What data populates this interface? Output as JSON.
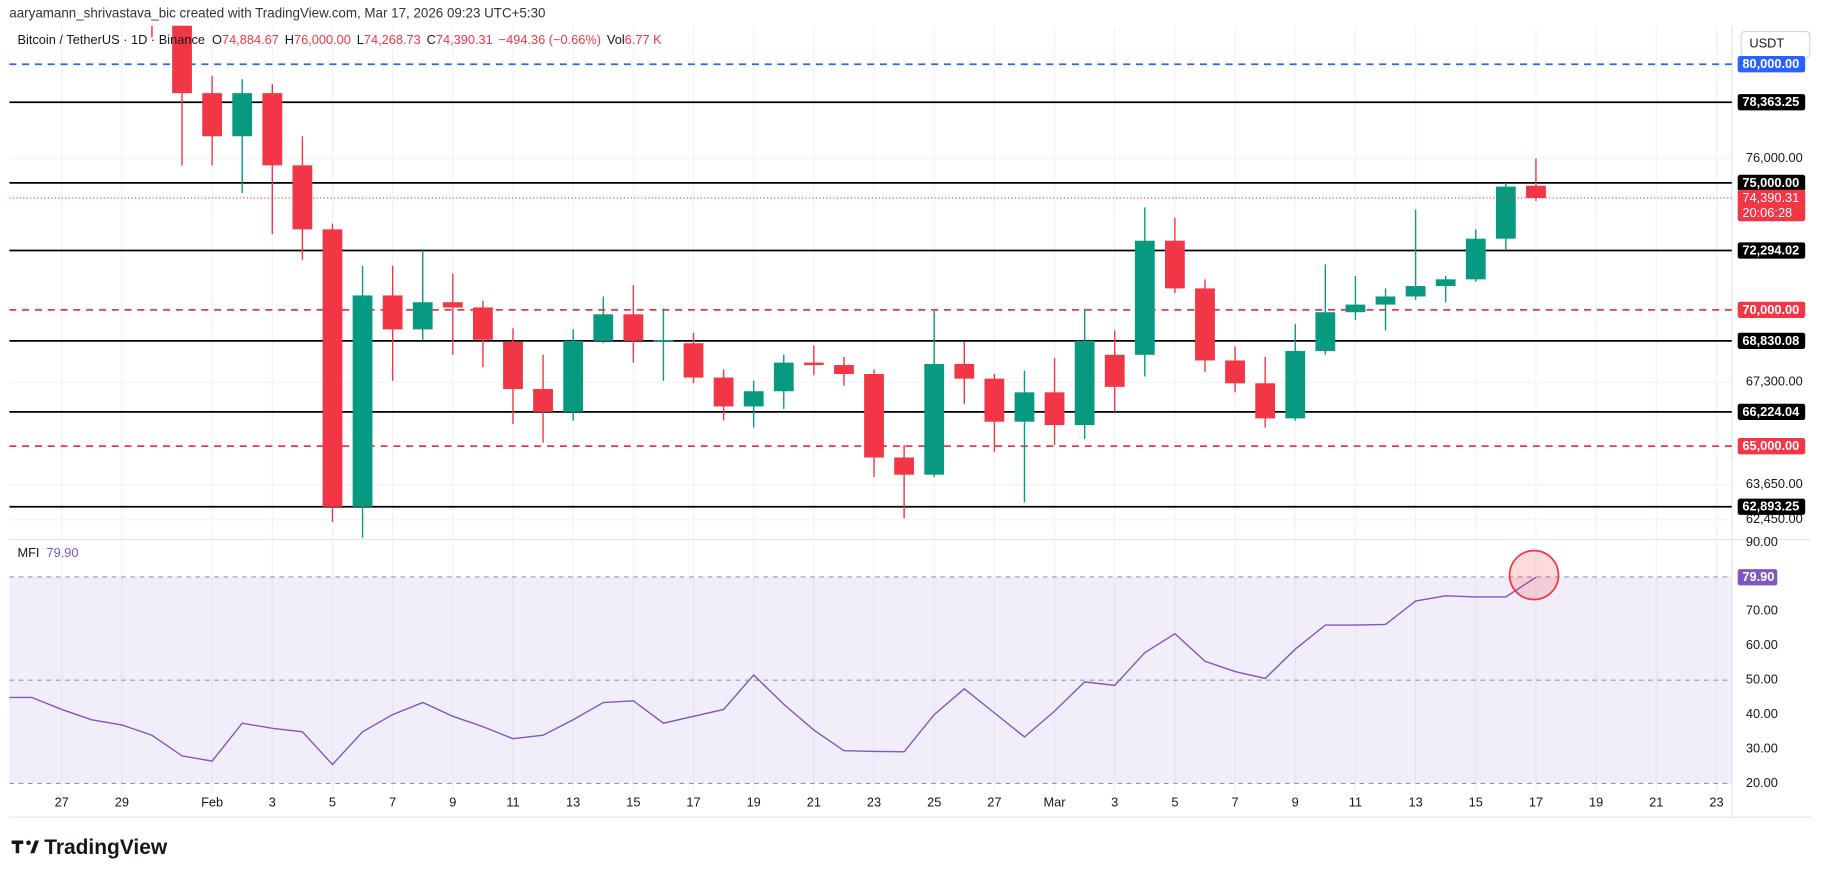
{
  "header": {
    "attribution": "aaryamann_shrivastava_bic created with TradingView.com, Mar 17, 2026 09:23 UTC+5:30",
    "logo": "TradingView"
  },
  "chart_data": [
    {
      "type": "candlestick",
      "title": "Bitcoin / TetherUS · 1D · Binance",
      "currency": "USDT",
      "ohlc_legend": [
        {
          "key": "O",
          "value": "74,884.67"
        },
        {
          "key": "H",
          "value": "76,000.00"
        },
        {
          "key": "L",
          "value": "74,268.73"
        },
        {
          "key": "C",
          "value": "74,390.31"
        }
      ],
      "change": "−494.36 (−0.66%)",
      "volume": {
        "key": "Vol",
        "value": "6.77 K"
      },
      "categories": [
        null,
        null,
        "27",
        null,
        "29",
        null,
        null,
        "Feb",
        null,
        "3",
        null,
        "5",
        null,
        "7",
        null,
        "9",
        null,
        "11",
        null,
        "13",
        null,
        "15",
        null,
        "17",
        null,
        "19",
        null,
        "21",
        null,
        "23",
        null,
        "25",
        null,
        "27",
        null,
        "Mar",
        null,
        "3",
        null,
        "5",
        null,
        "7",
        null,
        "9",
        null,
        "11",
        null,
        "13",
        null,
        "15",
        null,
        "17",
        null,
        "19",
        null,
        "21",
        null,
        "23"
      ],
      "open": [
        null,
        null,
        null,
        null,
        null,
        83500,
        82100,
        78750,
        76927,
        78750,
        75720,
        73130,
        62893,
        70550,
        69260,
        70290,
        70090,
        68790,
        67050,
        66224,
        68830,
        69830,
        68800,
        68740,
        67470,
        66420,
        66970,
        68020,
        67930,
        67600,
        64600,
        64000,
        67970,
        67430,
        65870,
        66930,
        65750,
        68310,
        68310,
        72680,
        70820,
        68100,
        67260,
        65990,
        68450,
        69910,
        70200,
        70510,
        70910,
        71170,
        72760,
        74884.67,
        null,
        null,
        null,
        null,
        null,
        null
      ],
      "high": [
        null,
        null,
        null,
        null,
        null,
        84000,
        82500,
        79500,
        79350,
        79150,
        76927,
        73360,
        71700,
        71700,
        72294,
        71390,
        70350,
        69300,
        68310,
        69260,
        70510,
        70950,
        70050,
        69130,
        67770,
        67350,
        68310,
        68660,
        68230,
        67770,
        65040,
        69960,
        68790,
        67600,
        67720,
        68190,
        70040,
        69220,
        74010,
        73590,
        71170,
        68620,
        68230,
        69470,
        71750,
        71300,
        70820,
        73920,
        71300,
        73130,
        75000,
        76000,
        null,
        null,
        null,
        null,
        null,
        null
      ],
      "low": [
        null,
        null,
        null,
        null,
        null,
        81170,
        75720,
        75720,
        74590,
        72940,
        71930,
        62370,
        61840,
        67350,
        68870,
        68310,
        67850,
        65790,
        65120,
        65910,
        68740,
        68020,
        67350,
        67260,
        65910,
        65660,
        66330,
        67550,
        67170,
        63920,
        62500,
        63920,
        66500,
        64800,
        63040,
        65040,
        65250,
        66224,
        67510,
        70640,
        67680,
        66930,
        65660,
        65910,
        68310,
        69610,
        69220,
        70380,
        70290,
        71080,
        72340,
        74268.73,
        null,
        null,
        null,
        null,
        null,
        null
      ],
      "close": [
        null,
        null,
        null,
        null,
        null,
        82100,
        78750,
        76927,
        78750,
        75720,
        73130,
        62893,
        70550,
        69260,
        70290,
        70090,
        68870,
        67050,
        66224,
        68830,
        69830,
        68830,
        68860,
        67470,
        66420,
        66970,
        68020,
        67930,
        67600,
        64600,
        64000,
        67970,
        67430,
        65870,
        66930,
        65750,
        68830,
        67130,
        72680,
        70820,
        68100,
        67260,
        65990,
        68450,
        69910,
        70200,
        70510,
        70910,
        71170,
        72760,
        74850,
        74390.31,
        null,
        null,
        null,
        null,
        null,
        null
      ],
      "up_color": "#089981",
      "down_color": "#f23645",
      "log_scale": true,
      "ylim": [
        61840,
        81690
      ],
      "grid": true,
      "yticks": [
        {
          "value": 76000,
          "label": "76,000.00"
        },
        {
          "value": 67300,
          "label": "67,300.00"
        },
        {
          "value": 63650,
          "label": "63,650.00"
        },
        {
          "value": 62450,
          "label": "62,450.00"
        }
      ],
      "levels": [
        {
          "value": 80000,
          "label": "80,000.00",
          "style": "dashed",
          "color": "#2962ff"
        },
        {
          "value": 78363.25,
          "label": "78,363.25",
          "style": "solid",
          "color": "#000000"
        },
        {
          "value": 75000,
          "label": "75,000.00",
          "style": "solid",
          "color": "#000000"
        },
        {
          "value": 72294.02,
          "label": "72,294.02",
          "style": "solid",
          "color": "#000000"
        },
        {
          "value": 70000,
          "label": "70,000.00",
          "style": "dashed",
          "color": "#f23645"
        },
        {
          "value": 68830.08,
          "label": "68,830.08",
          "style": "solid",
          "color": "#000000"
        },
        {
          "value": 66224.04,
          "label": "66,224.04",
          "style": "solid",
          "color": "#000000"
        },
        {
          "value": 65000,
          "label": "65,000.00",
          "style": "dashed",
          "color": "#f23645"
        },
        {
          "value": 62893.25,
          "label": "62,893.25",
          "style": "solid",
          "color": "#000000"
        }
      ],
      "last_price_label": "74,390.31",
      "countdown": "20:06:28"
    },
    {
      "type": "line",
      "title": "MFI",
      "last_value_label": "79.90",
      "color": "#7e57c2",
      "values": [
        45,
        45,
        41.5,
        38.5,
        37,
        34,
        28,
        26.5,
        37.5,
        36,
        35,
        25.5,
        35,
        40,
        43.5,
        39.5,
        36.5,
        33,
        34,
        38.5,
        43.5,
        44,
        37.5,
        39.5,
        41.5,
        51.5,
        43,
        35.5,
        29.5,
        29.3,
        29.2,
        40,
        47.5,
        40.5,
        33.5,
        41,
        49.5,
        48.5,
        58,
        63.5,
        55.5,
        52.5,
        50.5,
        59,
        66,
        66,
        66.2,
        73,
        74.5,
        74.2,
        74.2,
        79.9,
        null,
        null,
        null,
        null,
        null,
        null
      ],
      "ylim": [
        20,
        90
      ],
      "yticks": [
        {
          "value": 90,
          "label": "90.00"
        },
        {
          "value": 70,
          "label": "70.00"
        },
        {
          "value": 60,
          "label": "60.00"
        },
        {
          "value": 50,
          "label": "50.00"
        },
        {
          "value": 40,
          "label": "40.00"
        },
        {
          "value": 30,
          "label": "30.00"
        },
        {
          "value": 20,
          "label": "20.00"
        }
      ],
      "bands": [
        80,
        50,
        20
      ]
    }
  ]
}
